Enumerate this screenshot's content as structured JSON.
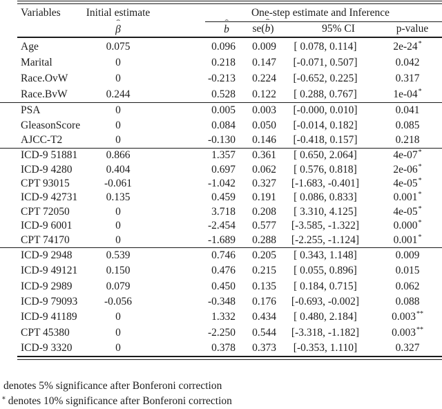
{
  "table": {
    "header": {
      "col_variables": "Variables",
      "col_initial": "Initial estimate",
      "col_onestep": "One-step estimate and Inference",
      "beta_base": "β",
      "b_base": "b",
      "hat": "ˆ",
      "se_prefix": "se(",
      "se_suffix": ")",
      "col_ci": "95% CI",
      "col_pvalue": "p-value"
    },
    "groups": [
      {
        "rows": [
          {
            "var": "Age",
            "init": "0.075",
            "b": "0.096",
            "se": "0.009",
            "ci": "[ 0.078, 0.114]",
            "p": "2e-24",
            "stars": "*"
          },
          {
            "var": "Marital",
            "init": "0",
            "b": "0.218",
            "se": "0.147",
            "ci": "[-0.071, 0.507]",
            "p": "0.042",
            "stars": ""
          },
          {
            "var": "Race.OvW",
            "init": "0",
            "b": "-0.213",
            "se": "0.224",
            "ci": "[-0.652, 0.225]",
            "p": "0.317",
            "stars": ""
          },
          {
            "var": "Race.BvW",
            "init": "0.244",
            "b": "0.528",
            "se": "0.122",
            "ci": "[ 0.288, 0.767]",
            "p": "1e-04",
            "stars": "*"
          }
        ]
      },
      {
        "rows": [
          {
            "var": "PSA",
            "init": "0",
            "b": "0.005",
            "se": "0.003",
            "ci": "[-0.000, 0.010]",
            "p": "0.041",
            "stars": ""
          },
          {
            "var": "GleasonScore",
            "init": "0",
            "b": "0.084",
            "se": "0.050",
            "ci": "[-0.014, 0.182]",
            "p": "0.085",
            "stars": ""
          },
          {
            "var": "AJCC-T2",
            "init": "0",
            "b": "-0.130",
            "se": "0.146",
            "ci": "[-0.418, 0.157]",
            "p": "0.218",
            "stars": ""
          }
        ]
      },
      {
        "rows": [
          {
            "var": "ICD-9 51881",
            "init": "0.866",
            "b": "1.357",
            "se": "0.361",
            "ci": "[ 0.650, 2.064]",
            "p": "4e-07",
            "stars": "*"
          },
          {
            "var": "ICD-9 4280",
            "init": "0.404",
            "b": "0.697",
            "se": "0.062",
            "ci": "[ 0.576, 0.818]",
            "p": "2e-06",
            "stars": "*"
          },
          {
            "var": "CPT 93015",
            "init": "-0.061",
            "b": "-1.042",
            "se": "0.327",
            "ci": "[-1.683, -0.401]",
            "p": "4e-05",
            "stars": "*"
          },
          {
            "var": "ICD-9 42731",
            "init": "0.135",
            "b": "0.459",
            "se": "0.191",
            "ci": "[ 0.086, 0.833]",
            "p": "0.001",
            "stars": "*"
          },
          {
            "var": "CPT 72050",
            "init": "0",
            "b": "3.718",
            "se": "0.208",
            "ci": "[ 3.310, 4.125]",
            "p": "4e-05",
            "stars": "*"
          },
          {
            "var": "ICD-9 6001",
            "init": "0",
            "b": "-2.454",
            "se": "0.577",
            "ci": "[-3.585, -1.322]",
            "p": "0.000",
            "stars": "*"
          },
          {
            "var": "CPT 74170",
            "init": "0",
            "b": "-1.689",
            "se": "0.288",
            "ci": "[-2.255, -1.124]",
            "p": "0.001",
            "stars": "*"
          }
        ]
      },
      {
        "rows": [
          {
            "var": "ICD-9 2948",
            "init": "0.539",
            "b": "0.746",
            "se": "0.205",
            "ci": "[ 0.343, 1.148]",
            "p": "0.009",
            "stars": ""
          },
          {
            "var": "ICD-9 49121",
            "init": "0.150",
            "b": "0.476",
            "se": "0.215",
            "ci": "[ 0.055, 0.896]",
            "p": "0.015",
            "stars": ""
          },
          {
            "var": "ICD-9 2989",
            "init": "0.079",
            "b": "0.450",
            "se": "0.135",
            "ci": "[ 0.184, 0.715]",
            "p": "0.062",
            "stars": ""
          },
          {
            "var": "ICD-9 79093",
            "init": "-0.056",
            "b": "-0.348",
            "se": "0.176",
            "ci": "[-0.693, -0.002]",
            "p": "0.088",
            "stars": ""
          },
          {
            "var": "ICD-9 41189",
            "init": "0",
            "b": "1.332",
            "se": "0.434",
            "ci": "[ 0.480, 2.184]",
            "p": "0.003",
            "stars": "**"
          },
          {
            "var": "CPT 45380",
            "init": "0",
            "b": "-2.250",
            "se": "0.544",
            "ci": "[-3.318, -1.182]",
            "p": "0.003",
            "stars": "**"
          },
          {
            "var": "ICD-9 3320",
            "init": "0",
            "b": "0.378",
            "se": "0.373",
            "ci": "[-0.353, 1.110]",
            "p": "0.327",
            "stars": ""
          }
        ]
      }
    ]
  },
  "footnotes": [
    {
      "prefix": "",
      "text": "denotes 5% significance after Bonferoni correction"
    },
    {
      "prefix": "∗",
      "text": "denotes 10% significance after Bonferoni correction"
    }
  ]
}
